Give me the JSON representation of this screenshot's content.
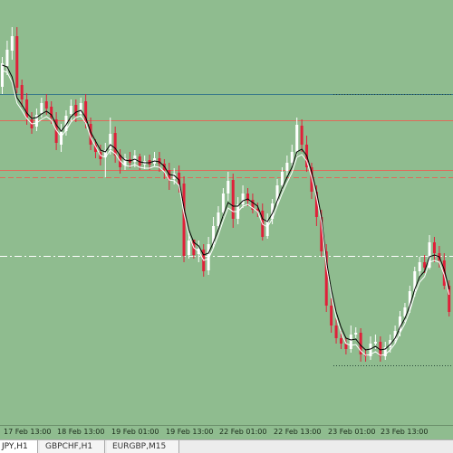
{
  "chart_data": {
    "type": "candlestick",
    "colors": {
      "background": "#8fbc8f",
      "bull": "#ffffff",
      "bear": "#e0203a",
      "ma": "#000000",
      "bid_line": "#ffffff",
      "level_line": "#e06a5a"
    },
    "ylim": [
      0,
      470
    ],
    "candles": [
      [
        96,
        70,
        104,
        63
      ],
      [
        73,
        55,
        83,
        45
      ],
      [
        56,
        40,
        66,
        30
      ],
      [
        40,
        97,
        103,
        30
      ],
      [
        94,
        110,
        118,
        88
      ],
      [
        110,
        130,
        138,
        103
      ],
      [
        132,
        142,
        148,
        124
      ],
      [
        140,
        127,
        145,
        120
      ],
      [
        125,
        114,
        130,
        108
      ],
      [
        112,
        120,
        127,
        104
      ],
      [
        118,
        130,
        137,
        112
      ],
      [
        132,
        158,
        166,
        124
      ],
      [
        160,
        146,
        168,
        137
      ],
      [
        145,
        128,
        150,
        122
      ],
      [
        126,
        117,
        134,
        110
      ],
      [
        116,
        128,
        135,
        110
      ],
      [
        126,
        114,
        130,
        108
      ],
      [
        112,
        136,
        142,
        104
      ],
      [
        137,
        160,
        166,
        130
      ],
      [
        160,
        168,
        175,
        154
      ],
      [
        168,
        176,
        183,
        160
      ],
      [
        174,
        166,
        196,
        158
      ],
      [
        165,
        148,
        171,
        130
      ],
      [
        147,
        172,
        180,
        140
      ],
      [
        171,
        185,
        192,
        165
      ],
      [
        183,
        175,
        188,
        170
      ],
      [
        176,
        180,
        186,
        168
      ],
      [
        179,
        172,
        185,
        166
      ],
      [
        173,
        183,
        188,
        170
      ],
      [
        182,
        178,
        187,
        172
      ],
      [
        177,
        182,
        188,
        171
      ],
      [
        181,
        175,
        184,
        168
      ],
      [
        175,
        181,
        190,
        168
      ],
      [
        181,
        188,
        198,
        176
      ],
      [
        188,
        199,
        210,
        180
      ],
      [
        198,
        192,
        204,
        186
      ],
      [
        191,
        204,
        213,
        183
      ],
      [
        203,
        283,
        290,
        195
      ],
      [
        282,
        266,
        286,
        258
      ],
      [
        265,
        282,
        286,
        270
      ],
      [
        281,
        275,
        290,
        266
      ],
      [
        276,
        300,
        306,
        270
      ],
      [
        299,
        270,
        304,
        262
      ],
      [
        270,
        250,
        274,
        240
      ],
      [
        250,
        235,
        255,
        228
      ],
      [
        235,
        214,
        240,
        208
      ],
      [
        214,
        200,
        222,
        190
      ],
      [
        199,
        242,
        252,
        192
      ],
      [
        242,
        226,
        248,
        218
      ],
      [
        226,
        214,
        230,
        205
      ],
      [
        214,
        222,
        228,
        208
      ],
      [
        221,
        232,
        236,
        214
      ],
      [
        231,
        234,
        240,
        224
      ],
      [
        233,
        262,
        266,
        225
      ],
      [
        261,
        243,
        264,
        236
      ],
      [
        242,
        225,
        248,
        220
      ],
      [
        225,
        205,
        228,
        198
      ],
      [
        205,
        190,
        210,
        185
      ],
      [
        189,
        180,
        194,
        172
      ],
      [
        180,
        168,
        184,
        160
      ],
      [
        168,
        138,
        172,
        130
      ],
      [
        139,
        160,
        168,
        132
      ],
      [
        160,
        185,
        190,
        150
      ],
      [
        185,
        212,
        220,
        180
      ],
      [
        212,
        240,
        250,
        205
      ],
      [
        240,
        278,
        284,
        232
      ],
      [
        278,
        338,
        345,
        270
      ],
      [
        338,
        360,
        368,
        330
      ],
      [
        360,
        374,
        380,
        352
      ],
      [
        374,
        380,
        386,
        366
      ],
      [
        380,
        386,
        392,
        373
      ],
      [
        386,
        370,
        390,
        360
      ],
      [
        370,
        368,
        374,
        362
      ],
      [
        368,
        392,
        400,
        363
      ],
      [
        392,
        394,
        400,
        386
      ],
      [
        394,
        380,
        398,
        372
      ],
      [
        380,
        378,
        386,
        370
      ],
      [
        378,
        394,
        400,
        372
      ],
      [
        394,
        384,
        398,
        378
      ],
      [
        384,
        376,
        390,
        370
      ],
      [
        376,
        366,
        380,
        360
      ],
      [
        366,
        350,
        372,
        344
      ],
      [
        350,
        340,
        356,
        335
      ],
      [
        340,
        322,
        346,
        316
      ],
      [
        322,
        300,
        328,
        295
      ],
      [
        300,
        290,
        306,
        284
      ],
      [
        290,
        296,
        302,
        282
      ],
      [
        296,
        268,
        298,
        260
      ],
      [
        268,
        280,
        290,
        262
      ],
      [
        280,
        288,
        296,
        272
      ],
      [
        288,
        316,
        320,
        280
      ],
      [
        316,
        345,
        350,
        310
      ]
    ],
    "ma": [
      72,
      74,
      85,
      108,
      116,
      125,
      131,
      130,
      126,
      123,
      127,
      138,
      145,
      138,
      129,
      124,
      122,
      130,
      146,
      156,
      166,
      168,
      160,
      164,
      172,
      177,
      178,
      176,
      179,
      180,
      180,
      178,
      179,
      184,
      193,
      194,
      199,
      230,
      254,
      268,
      272,
      282,
      280,
      268,
      254,
      238,
      224,
      228,
      228,
      222,
      220,
      224,
      228,
      242,
      245,
      236,
      222,
      208,
      196,
      185,
      168,
      165,
      172,
      190,
      212,
      240,
      288,
      320,
      345,
      362,
      374,
      376,
      375,
      382,
      387,
      386,
      383,
      387,
      386,
      381,
      374,
      362,
      352,
      338,
      320,
      306,
      300,
      284,
      282,
      284,
      298,
      320
    ],
    "horizontal_lines": [
      {
        "y": 104,
        "color": "#3a7a8a",
        "style": "solid",
        "x_from": 0,
        "x_to": 500
      },
      {
        "y": 104,
        "color": "#2a4a3a",
        "style": "dotted",
        "x_from": 368,
        "x_to": 500
      },
      {
        "y": 133,
        "color": "#e06a5a",
        "style": "solid",
        "x_from": 0,
        "x_to": 500
      },
      {
        "y": 188,
        "color": "#e06a5a",
        "style": "solid",
        "x_from": 0,
        "x_to": 500
      },
      {
        "y": 196,
        "color": "#e06a5a",
        "style": "dashed",
        "x_from": 0,
        "x_to": 500
      },
      {
        "y": 283,
        "color": "#ffffff",
        "style": "dashdot",
        "x_from": 0,
        "x_to": 500
      },
      {
        "y": 404,
        "color": "#2a4a3a",
        "style": "dotted",
        "x_from": 368,
        "x_to": 500
      }
    ],
    "x_tick_labels": [
      "17 Feb 13:00",
      "18 Feb 13:00",
      "19 Feb 01:00",
      "19 Feb 13:00",
      "22 Feb 01:00",
      "22 Feb 13:00",
      "23 Feb 01:00",
      "23 Feb 13:00"
    ]
  },
  "tabs": [
    {
      "label": "JPY,H1",
      "active": true
    },
    {
      "label": "GBPCHF,H1",
      "active": false
    },
    {
      "label": "EURGBP,M15",
      "active": false
    }
  ]
}
